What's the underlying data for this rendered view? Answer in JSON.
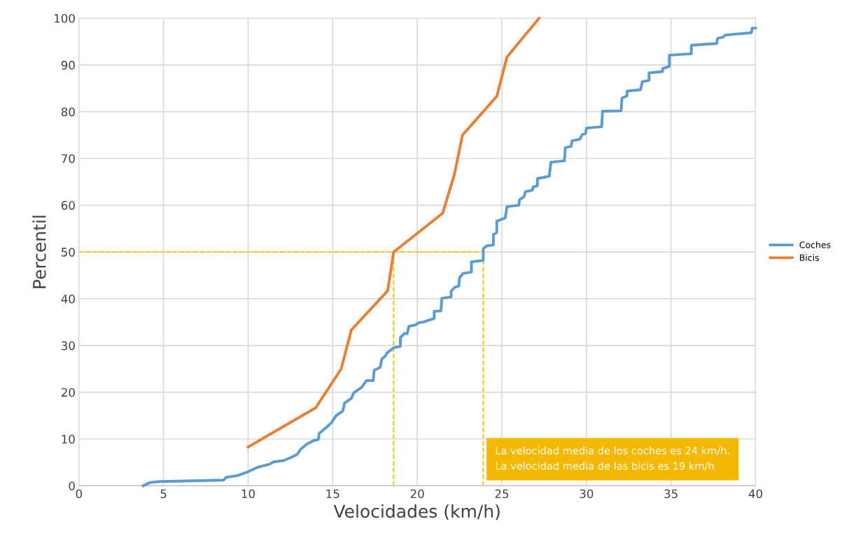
{
  "chart_data": {
    "type": "line",
    "xlabel": "Velocidades (km/h)",
    "ylabel": "Percentil",
    "xlim": [
      0,
      40
    ],
    "xticks": [
      0,
      5,
      10,
      15,
      20,
      25,
      30,
      35,
      40
    ],
    "ylim": [
      0,
      100
    ],
    "yticks": [
      0,
      10,
      20,
      30,
      40,
      50,
      60,
      70,
      80,
      90,
      100
    ],
    "grid": true,
    "legend": "right",
    "marker": "none",
    "line_style": "solid",
    "series": [
      {
        "name": "Coches",
        "color": "#5b9bd5",
        "x": [
          3.8,
          4.2,
          4.8,
          8.55,
          8.7,
          9.4,
          10.0,
          10.6,
          11.25,
          11.5,
          12.1,
          12.5,
          12.9,
          13.1,
          13.5,
          13.9,
          14.15,
          14.2,
          14.6,
          14.93,
          15.2,
          15.6,
          15.7,
          16.1,
          16.25,
          16.7,
          17.0,
          17.4,
          17.45,
          17.8,
          17.9,
          18.1,
          18.2,
          18.6,
          19.0,
          19.0,
          19.25,
          19.4,
          19.5,
          19.9,
          20.1,
          20.35,
          21.0,
          21.0,
          21.4,
          21.45,
          22.0,
          22.0,
          22.2,
          22.45,
          22.5,
          22.7,
          23.2,
          23.2,
          23.9,
          23.9,
          24.1,
          24.5,
          24.5,
          24.7,
          24.7,
          25.0,
          25.2,
          25.3,
          26.0,
          26.05,
          26.3,
          26.4,
          26.8,
          26.85,
          27.1,
          27.1,
          27.8,
          27.9,
          28.7,
          28.75,
          29.1,
          29.15,
          29.6,
          29.75,
          29.95,
          30.0,
          30.9,
          30.95,
          32.05,
          32.1,
          32.4,
          32.4,
          33.2,
          33.3,
          33.7,
          33.7,
          34.5,
          34.5,
          34.9,
          34.9,
          36.2,
          36.2,
          37.7,
          37.75,
          38.1,
          38.2,
          39.75,
          39.8,
          40.0
        ],
        "values": [
          0,
          0.7,
          0.9,
          1.2,
          1.8,
          2.2,
          3.0,
          4.0,
          4.6,
          5.1,
          5.4,
          6.0,
          6.7,
          7.8,
          9.0,
          9.7,
          9.9,
          11.2,
          12.4,
          13.5,
          15.0,
          16.0,
          17.7,
          18.7,
          19.9,
          21.0,
          22.5,
          22.5,
          24.7,
          25.3,
          27.1,
          27.7,
          28.4,
          29.5,
          29.8,
          31.7,
          32.6,
          32.5,
          34.1,
          34.4,
          34.9,
          35.0,
          35.8,
          37.3,
          37.4,
          40.1,
          40.4,
          41.6,
          42.4,
          42.7,
          44.5,
          45.4,
          45.7,
          47.9,
          48.2,
          50.7,
          51.3,
          51.5,
          53.7,
          54.2,
          56.6,
          57.0,
          57.3,
          59.7,
          60.0,
          61.2,
          61.8,
          62.9,
          63.2,
          63.9,
          64.2,
          65.7,
          66.2,
          69.2,
          69.5,
          72.3,
          72.6,
          73.8,
          74.1,
          75.1,
          75.4,
          76.5,
          76.8,
          80.1,
          80.2,
          82.9,
          83.4,
          84.4,
          84.7,
          86.4,
          86.7,
          88.3,
          88.6,
          89.2,
          89.7,
          92.1,
          92.4,
          94.2,
          94.6,
          95.7,
          96.0,
          96.4,
          96.9,
          97.9,
          97.9
        ]
      },
      {
        "name": "Bicis",
        "color": "#ed7d31",
        "x": [
          10.0,
          14.0,
          15.5,
          16.1,
          18.25,
          18.6,
          21.5,
          22.2,
          22.67,
          24.7,
          25.3,
          27.2
        ],
        "values": [
          8.3,
          16.7,
          25.0,
          33.3,
          41.7,
          50.0,
          58.3,
          66.7,
          75.0,
          83.3,
          91.7,
          100
        ]
      }
    ],
    "ref_lines": [
      {
        "axis": "y",
        "value": 50,
        "color": "#ffc000",
        "line_style": "dashed"
      },
      {
        "axis": "x",
        "value": 18.6,
        "color": "#ffc000",
        "line_style": "dashed"
      },
      {
        "axis": "x",
        "value": 23.9,
        "color": "#ffc000",
        "line_style": "dashed"
      }
    ],
    "annotations": [
      "La velocidad media de los coches es 24 km/h.\nLa velocidad media de las bicis es 19 km/h"
    ]
  }
}
